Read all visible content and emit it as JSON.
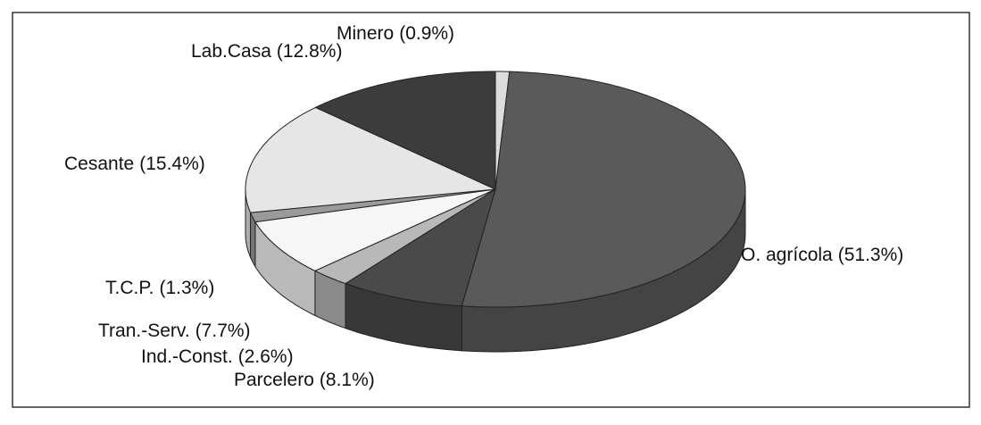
{
  "chart_data": {
    "type": "pie",
    "categories": [
      "Minero",
      "O. agrícola",
      "Parcelero",
      "Ind.-Const.",
      "Tran.-Serv.",
      "T.C.P.",
      "Cesante",
      "Lab.Casa"
    ],
    "values": [
      0.9,
      51.3,
      8.1,
      2.6,
      7.7,
      1.3,
      15.4,
      12.8
    ],
    "value_labels": [
      "(0.9%)",
      "(51.3%)",
      "(8.1%)",
      "(2.6%)",
      "(7.7%)",
      "(1.3%)",
      "(15.4%)",
      "(12.8%)"
    ],
    "colors": [
      "#dcdcdc",
      "#5a5a5a",
      "#4a4a4a",
      "#b8b8b8",
      "#f6f6f6",
      "#9a9a9a",
      "#e6e6e6",
      "#3c3c3c"
    ]
  }
}
